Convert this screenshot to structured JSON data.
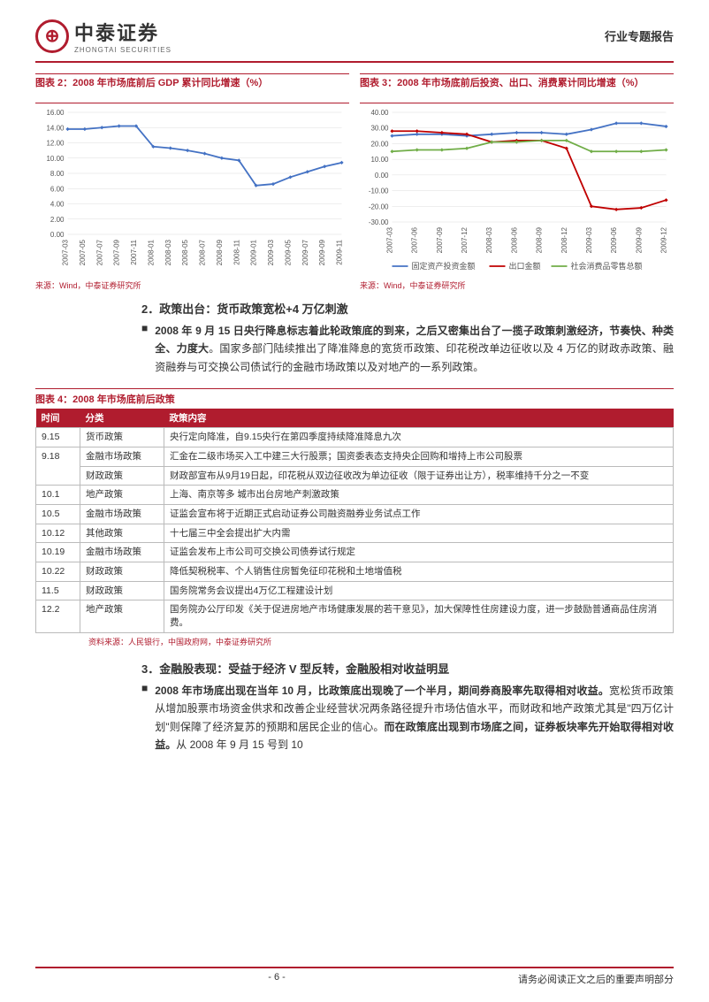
{
  "header": {
    "logo_glyph": "⊕",
    "logo_cn": "中泰证券",
    "logo_en": "ZHONGTAI SECURITIES",
    "doc_type": "行业专题报告"
  },
  "chart2": {
    "title": "图表 2：2008 年市场底前后 GDP 累计同比增速（%）",
    "type": "line",
    "x_labels": [
      "2007-03",
      "2007-05",
      "2007-07",
      "2007-09",
      "2007-11",
      "2008-01",
      "2008-03",
      "2008-05",
      "2008-07",
      "2008-09",
      "2008-11",
      "2009-01",
      "2009-03",
      "2009-05",
      "2009-07",
      "2009-09",
      "2009-11"
    ],
    "y_ticks": [
      0,
      2,
      4,
      6,
      8,
      10,
      12,
      14,
      16
    ],
    "ylim": [
      0,
      16
    ],
    "values": [
      13.8,
      13.8,
      14.0,
      14.2,
      14.2,
      11.5,
      11.3,
      11.0,
      10.6,
      10.0,
      9.7,
      6.4,
      6.6,
      7.5,
      8.2,
      8.9,
      9.4
    ],
    "line_color": "#4472c4",
    "marker_color": "#4472c4",
    "grid_color": "#dddddd",
    "background": "#ffffff",
    "source": "来源：Wind，中泰证券研究所"
  },
  "chart3": {
    "title": "图表 3：2008 年市场底前后投资、出口、消费累计同比增速（%）",
    "type": "line",
    "x_labels": [
      "2007-03",
      "2007-06",
      "2007-09",
      "2007-12",
      "2008-03",
      "2008-06",
      "2008-09",
      "2008-12",
      "2009-03",
      "2009-06",
      "2009-09",
      "2009-12"
    ],
    "y_ticks": [
      -30,
      -20,
      -10,
      0,
      10,
      20,
      30,
      40
    ],
    "ylim": [
      -30,
      40
    ],
    "series": [
      {
        "name": "固定资产投资金额",
        "color": "#4472c4",
        "values": [
          25,
          26,
          26,
          25,
          26,
          27,
          27,
          26,
          29,
          33,
          33,
          31
        ]
      },
      {
        "name": "出口金额",
        "color": "#c00000",
        "values": [
          28,
          28,
          27,
          26,
          21,
          22,
          22,
          17,
          -20,
          -22,
          -21,
          -16
        ]
      },
      {
        "name": "社会消费品零售总额",
        "color": "#70ad47",
        "values": [
          15,
          16,
          16,
          17,
          21,
          21,
          22,
          22,
          15,
          15,
          15,
          16
        ]
      }
    ],
    "grid_color": "#dddddd",
    "source": "来源：Wind，中泰证券研究所"
  },
  "section2": {
    "heading": "2．政策出台：货币政策宽松+4 万亿刺激",
    "bullet": "■",
    "bold_lead": "2008 年 9 月 15 日央行降息标志着此轮政策底的到来，之后又密集出台了一揽子政策刺激经济，节奏快、种类全、力度大",
    "rest": "。国家多部门陆续推出了降准降息的宽货币政策、印花税改单边征收以及 4 万亿的财政赤政策、融资融券与可交换公司债试行的金融市场政策以及对地产的一系列政策。"
  },
  "table4": {
    "title": "图表 4：2008 年市场底前后政策",
    "headers": [
      "时间",
      "分类",
      "政策内容"
    ],
    "rows": [
      {
        "time": "9.15",
        "cat": "货币政策",
        "content": "央行定向降准，自9.15央行在第四季度持续降准降息九次"
      },
      {
        "time": "9.18",
        "rowspan": 2,
        "cat": "金融市场政策",
        "content": "汇金在二级市场买入工中建三大行股票；国资委表态支持央企回购和增持上市公司股票"
      },
      {
        "time": "",
        "cat": "财政政策",
        "content": "财政部宣布从9月19日起，印花税从双边征收改为单边征收（限于证券出让方），税率维持千分之一不变"
      },
      {
        "time": "10.1",
        "cat": "地产政策",
        "content": "上海、南京等多 城市出台房地产刺激政策"
      },
      {
        "time": "10.5",
        "cat": "金融市场政策",
        "content": "证监会宣布将于近期正式启动证券公司融资融券业务试点工作"
      },
      {
        "time": "10.12",
        "cat": "其他政策",
        "content": "十七届三中全会提出扩大内需"
      },
      {
        "time": "10.19",
        "cat": "金融市场政策",
        "content": "证监会发布上市公司可交换公司债券试行规定"
      },
      {
        "time": "10.22",
        "cat": "财政政策",
        "content": "降低契税税率、个人销售住房暂免征印花税和土地增值税"
      },
      {
        "time": "11.5",
        "cat": "财政政策",
        "content": "国务院常务会议提出4万亿工程建设计划"
      },
      {
        "time": "12.2",
        "cat": "地产政策",
        "content": "国务院办公厅印发《关于促进房地产市场健康发展的若干意见》，加大保障性住房建设力度，进一步鼓励普通商品住房消费。"
      }
    ],
    "source": "资料来源：人民银行，中国政府网，中泰证券研究所"
  },
  "section3": {
    "heading": "3．金融股表现：受益于经济 V 型反转，金融股相对收益明显",
    "bullet": "■",
    "bold_lead": "2008 年市场底出现在当年 10 月，比政策底出现晚了一个半月，期间券商股率先取得相对收益。",
    "mid": "宽松货币政策从增加股票市场资金供求和改善企业经营状况两条路径提升市场估值水平，而财政和地产政策尤其是\"四万亿计划\"则保障了经济复苏的预期和居民企业的信心。",
    "bold_tail": "而在政策底出现到市场底之间，证券板块率先开始取得相对收益。",
    "rest": "从 2008 年 9 月 15 号到 10"
  },
  "footer": {
    "page": "- 6 -",
    "disclaimer": "请务必阅读正文之后的重要声明部分"
  },
  "colors": {
    "brand": "#b01c2e"
  }
}
